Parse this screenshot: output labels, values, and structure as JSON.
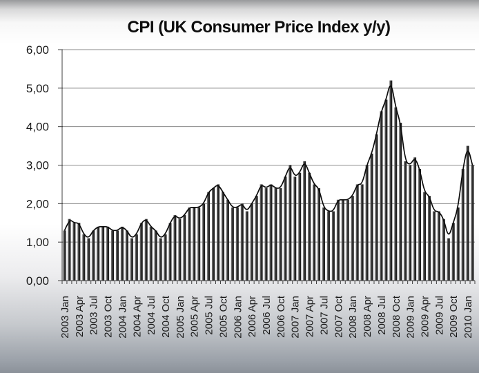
{
  "chart_data": {
    "type": "bar",
    "title": "CPI (UK Consumer Price Index y/y)",
    "xlabel": "",
    "ylabel": "",
    "ylim": [
      0,
      6
    ],
    "grid": true,
    "legend": false,
    "decimal_style": "comma",
    "y_tick_labels": [
      "0,00",
      "1,00",
      "2,00",
      "3,00",
      "4,00",
      "5,00",
      "6,00"
    ],
    "x_label_every": 3,
    "categories": [
      "2003 Jan",
      "2003 Feb",
      "2003 Mar",
      "2003 Apr",
      "2003 May",
      "2003 Jun",
      "2003 Jul",
      "2003 Aug",
      "2003 Sep",
      "2003 Oct",
      "2003 Nov",
      "2003 Dec",
      "2004 Jan",
      "2004 Feb",
      "2004 Mar",
      "2004 Apr",
      "2004 May",
      "2004 Jun",
      "2004 Jul",
      "2004 Aug",
      "2004 Sep",
      "2004 Oct",
      "2004 Nov",
      "2004 Dec",
      "2005 Jan",
      "2005 Feb",
      "2005 Mar",
      "2005 Apr",
      "2005 May",
      "2005 Jun",
      "2005 Jul",
      "2005 Aug",
      "2005 Sep",
      "2005 Oct",
      "2005 Nov",
      "2005 Dec",
      "2006 Jan",
      "2006 Feb",
      "2006 Mar",
      "2006 Apr",
      "2006 May",
      "2006 Jun",
      "2006 Jul",
      "2006 Aug",
      "2006 Sep",
      "2006 Oct",
      "2006 Nov",
      "2006 Dec",
      "2007 Jan",
      "2007 Feb",
      "2007 Mar",
      "2007 Apr",
      "2007 May",
      "2007 Jun",
      "2007 Jul",
      "2007 Aug",
      "2007 Sep",
      "2007 Oct",
      "2007 Nov",
      "2007 Dec",
      "2008 Jan",
      "2008 Feb",
      "2008 Mar",
      "2008 Apr",
      "2008 May",
      "2008 Jun",
      "2008 Jul",
      "2008 Aug",
      "2008 Sep",
      "2008 Oct",
      "2008 Nov",
      "2008 Dec",
      "2009 Jan",
      "2009 Feb",
      "2009 Mar",
      "2009 Apr",
      "2009 May",
      "2009 Jun",
      "2009 Jul",
      "2009 Aug",
      "2009 Sep",
      "2009 Oct",
      "2009 Nov",
      "2009 Dec",
      "2010 Jan",
      "2010 Feb"
    ],
    "values": [
      1.3,
      1.6,
      1.5,
      1.5,
      1.2,
      1.1,
      1.3,
      1.4,
      1.4,
      1.4,
      1.3,
      1.3,
      1.4,
      1.3,
      1.1,
      1.2,
      1.5,
      1.6,
      1.4,
      1.3,
      1.1,
      1.2,
      1.5,
      1.7,
      1.6,
      1.7,
      1.9,
      1.9,
      1.9,
      2.0,
      2.3,
      2.4,
      2.5,
      2.3,
      2.1,
      1.9,
      1.9,
      2.0,
      1.8,
      2.0,
      2.2,
      2.5,
      2.4,
      2.5,
      2.4,
      2.4,
      2.7,
      3.0,
      2.7,
      2.8,
      3.1,
      2.8,
      2.5,
      2.4,
      1.9,
      1.8,
      1.8,
      2.1,
      2.1,
      2.1,
      2.2,
      2.5,
      2.5,
      3.0,
      3.3,
      3.8,
      4.4,
      4.7,
      5.2,
      4.5,
      4.1,
      3.1,
      3.0,
      3.2,
      2.9,
      2.3,
      2.2,
      1.8,
      1.8,
      1.6,
      1.1,
      1.5,
      1.9,
      2.9,
      3.5,
      3.0
    ],
    "overlay_line": {
      "name": "smoothed-trend",
      "description": "smoothed curve over the same monthly series",
      "color": "#0d0d0d"
    },
    "colors": {
      "bar_dark": "#141414",
      "bar_mid": "#323232",
      "bar_light": "#7d7d7d",
      "gridline": "#8a8a8a",
      "axis": "#3f3f3f",
      "tick_label": "#1a1a1a",
      "title": "#0e0e0e"
    }
  }
}
